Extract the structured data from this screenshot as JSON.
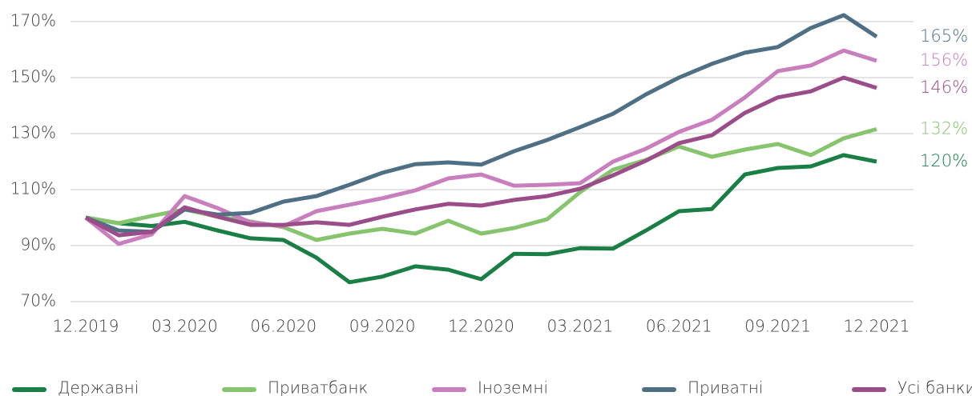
{
  "chart_data": {
    "type": "line",
    "categories": [
      "12.2019",
      null,
      null,
      "03.2020",
      null,
      null,
      "06.2020",
      null,
      null,
      "09.2020",
      null,
      null,
      "12.2020",
      null,
      null,
      "03.2021",
      null,
      null,
      "06.2021",
      null,
      null,
      "09.2021",
      null,
      null,
      "12.2021"
    ],
    "ylim": [
      70,
      170
    ],
    "yticks": [
      {
        "value": 70,
        "label": "70%"
      },
      {
        "value": 90,
        "label": "90%"
      },
      {
        "value": 110,
        "label": "110%"
      },
      {
        "value": 130,
        "label": "130%"
      },
      {
        "value": 150,
        "label": "150%"
      },
      {
        "value": 170,
        "label": "170%"
      }
    ],
    "grid": true,
    "legend": "bottom",
    "series": [
      {
        "name": "Державні",
        "color": "#1a7f45",
        "values": [
          100,
          98,
          97,
          98.5,
          95.4,
          92.6,
          92,
          85.7,
          76.9,
          78.9,
          82.6,
          81.4,
          78,
          87.1,
          86.9,
          89.1,
          88.9,
          95.4,
          102.3,
          103.1,
          115.4,
          117.7,
          118.3,
          122.3,
          120
        ],
        "value_labels": [
          null,
          null,
          null,
          null,
          null,
          null,
          null,
          null,
          null,
          null,
          null,
          null,
          null,
          null,
          null,
          null,
          null,
          null,
          null,
          null,
          null,
          null,
          null,
          null,
          "120%"
        ]
      },
      {
        "name": "Приватбанк",
        "color": "#86c56d",
        "values": [
          100,
          98,
          100.6,
          102.9,
          100.3,
          98.6,
          96.6,
          92,
          94.3,
          96,
          94.3,
          98.9,
          94.3,
          96.3,
          99.4,
          109.1,
          117.1,
          120.6,
          125.4,
          121.7,
          124.3,
          126.3,
          122.3,
          128.3,
          131.6
        ],
        "value_labels": [
          null,
          null,
          null,
          null,
          null,
          null,
          null,
          null,
          null,
          null,
          null,
          null,
          null,
          null,
          null,
          null,
          null,
          null,
          null,
          null,
          null,
          null,
          null,
          null,
          "132%"
        ]
      },
      {
        "name": "Іноземні",
        "color": "#c97fbd",
        "values": [
          100,
          90.6,
          94,
          107.7,
          103.4,
          98.3,
          96.9,
          102.3,
          104.6,
          106.9,
          109.7,
          114,
          115.4,
          111.4,
          111.7,
          112.3,
          120,
          124.6,
          130.6,
          134.9,
          142.9,
          152.3,
          154.3,
          159.7,
          156
        ],
        "value_labels": [
          null,
          null,
          null,
          null,
          null,
          null,
          null,
          null,
          null,
          null,
          null,
          null,
          null,
          null,
          null,
          null,
          null,
          null,
          null,
          null,
          null,
          null,
          null,
          null,
          "156%"
        ]
      },
      {
        "name": "Приватні",
        "color": "#4f6f85",
        "values": [
          100,
          95.4,
          94.9,
          102.9,
          101.1,
          101.7,
          105.7,
          107.7,
          111.7,
          116,
          119.1,
          119.7,
          118.9,
          123.7,
          127.7,
          132.3,
          137.1,
          144,
          150,
          154.9,
          158.9,
          160.9,
          167.7,
          172.3,
          164.6
        ],
        "value_labels": [
          null,
          null,
          null,
          null,
          null,
          null,
          null,
          null,
          null,
          null,
          null,
          null,
          null,
          null,
          null,
          null,
          null,
          null,
          null,
          null,
          null,
          null,
          null,
          null,
          "165%"
        ]
      },
      {
        "name": "Усі банки",
        "color": "#9b4d8a",
        "values": [
          100,
          93.7,
          94.9,
          103.7,
          100.3,
          97.4,
          97.4,
          98.3,
          97.4,
          100.3,
          102.9,
          104.9,
          104.3,
          106.3,
          107.7,
          110.3,
          115.1,
          120.3,
          126.6,
          129.4,
          137.4,
          142.9,
          145.1,
          150,
          146.3
        ],
        "value_labels": [
          null,
          null,
          null,
          null,
          null,
          null,
          null,
          null,
          null,
          null,
          null,
          null,
          null,
          null,
          null,
          null,
          null,
          null,
          null,
          null,
          null,
          null,
          null,
          null,
          "146%"
        ]
      }
    ]
  }
}
